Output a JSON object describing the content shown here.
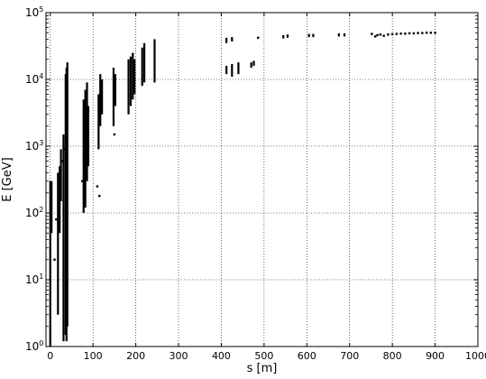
{
  "chart_data": {
    "type": "scatter",
    "title": "",
    "xlabel": "s [m]",
    "ylabel": "E [GeV]",
    "xlim": [
      -10,
      1000
    ],
    "ylim": [
      1,
      100000
    ],
    "yscale": "log",
    "grid": true,
    "x_ticks": [
      {
        "value": 0,
        "label": "0"
      },
      {
        "value": 100,
        "label": "100"
      },
      {
        "value": 200,
        "label": "200"
      },
      {
        "value": 300,
        "label": "300"
      },
      {
        "value": 400,
        "label": "400"
      },
      {
        "value": 500,
        "label": "500"
      },
      {
        "value": 600,
        "label": "600"
      },
      {
        "value": 700,
        "label": "700"
      },
      {
        "value": 800,
        "label": "800"
      },
      {
        "value": 900,
        "label": "900"
      },
      {
        "value": 1000,
        "label": "1000"
      }
    ],
    "y_ticks": [
      {
        "value": 1,
        "base": "10",
        "exp": "0"
      },
      {
        "value": 10,
        "base": "10",
        "exp": "1"
      },
      {
        "value": 100,
        "base": "10",
        "exp": "2"
      },
      {
        "value": 1000,
        "base": "10",
        "exp": "3"
      },
      {
        "value": 10000,
        "base": "10",
        "exp": "4"
      },
      {
        "value": 100000,
        "base": "10",
        "exp": "5"
      }
    ],
    "segments": [
      {
        "x": 0,
        "ymin": 1,
        "ymax": 300
      },
      {
        "x": 3,
        "ymin": 50,
        "ymax": 300
      },
      {
        "x": 18,
        "ymin": 3,
        "ymax": 400
      },
      {
        "x": 22,
        "ymin": 50,
        "ymax": 500
      },
      {
        "x": 25,
        "ymin": 150,
        "ymax": 900
      },
      {
        "x": 31,
        "ymin": 1.2,
        "ymax": 1500
      },
      {
        "x": 36,
        "ymin": 1.5,
        "ymax": 12000
      },
      {
        "x": 38,
        "ymin": 1.2,
        "ymax": 15000
      },
      {
        "x": 40,
        "ymin": 2,
        "ymax": 18000
      },
      {
        "x": 78,
        "ymin": 100,
        "ymax": 5000
      },
      {
        "x": 82,
        "ymin": 120,
        "ymax": 7000
      },
      {
        "x": 86,
        "ymin": 300,
        "ymax": 9000
      },
      {
        "x": 89,
        "ymin": 500,
        "ymax": 4000
      },
      {
        "x": 113,
        "ymin": 900,
        "ymax": 6000
      },
      {
        "x": 117,
        "ymin": 2000,
        "ymax": 12000
      },
      {
        "x": 121,
        "ymin": 3000,
        "ymax": 10000
      },
      {
        "x": 148,
        "ymin": 2000,
        "ymax": 15000
      },
      {
        "x": 152,
        "ymin": 4000,
        "ymax": 12000
      },
      {
        "x": 183,
        "ymin": 3000,
        "ymax": 20000
      },
      {
        "x": 188,
        "ymin": 4000,
        "ymax": 22000
      },
      {
        "x": 193,
        "ymin": 5000,
        "ymax": 25000
      },
      {
        "x": 197,
        "ymin": 6000,
        "ymax": 20000
      },
      {
        "x": 215,
        "ymin": 8000,
        "ymax": 30000
      },
      {
        "x": 220,
        "ymin": 9000,
        "ymax": 35000
      },
      {
        "x": 244,
        "ymin": 9000,
        "ymax": 40000
      },
      {
        "x": 412,
        "ymin": 12000,
        "ymax": 16000
      },
      {
        "x": 412,
        "ymin": 35000,
        "ymax": 42000
      },
      {
        "x": 425,
        "ymin": 11000,
        "ymax": 17000
      },
      {
        "x": 425,
        "ymin": 37000,
        "ymax": 43000
      },
      {
        "x": 440,
        "ymin": 12000,
        "ymax": 18000
      },
      {
        "x": 470,
        "ymin": 15000,
        "ymax": 18000
      },
      {
        "x": 476,
        "ymin": 16000,
        "ymax": 19000
      },
      {
        "x": 545,
        "ymin": 41000,
        "ymax": 46000
      },
      {
        "x": 555,
        "ymin": 42000,
        "ymax": 47000
      },
      {
        "x": 605,
        "ymin": 43000,
        "ymax": 48000
      },
      {
        "x": 615,
        "ymin": 43000,
        "ymax": 48000
      },
      {
        "x": 675,
        "ymin": 44000,
        "ymax": 49000
      },
      {
        "x": 688,
        "ymin": 44000,
        "ymax": 49000
      }
    ],
    "points": [
      {
        "x": 10,
        "y": 20
      },
      {
        "x": 14,
        "y": 80
      },
      {
        "x": 27,
        "y": 600
      },
      {
        "x": 33,
        "y": 900
      },
      {
        "x": 75,
        "y": 300
      },
      {
        "x": 110,
        "y": 250
      },
      {
        "x": 115,
        "y": 180
      },
      {
        "x": 150,
        "y": 1500
      },
      {
        "x": 486,
        "y": 42000
      },
      {
        "x": 752,
        "y": 48000
      },
      {
        "x": 760,
        "y": 44000
      },
      {
        "x": 765,
        "y": 46000
      },
      {
        "x": 772,
        "y": 47000
      },
      {
        "x": 780,
        "y": 45000
      },
      {
        "x": 790,
        "y": 47000
      },
      {
        "x": 800,
        "y": 47500
      },
      {
        "x": 810,
        "y": 48000
      },
      {
        "x": 820,
        "y": 48500
      },
      {
        "x": 830,
        "y": 48500
      },
      {
        "x": 840,
        "y": 49000
      },
      {
        "x": 850,
        "y": 49000
      },
      {
        "x": 860,
        "y": 49500
      },
      {
        "x": 870,
        "y": 49500
      },
      {
        "x": 880,
        "y": 50000
      },
      {
        "x": 890,
        "y": 50000
      },
      {
        "x": 900,
        "y": 50000
      }
    ]
  }
}
